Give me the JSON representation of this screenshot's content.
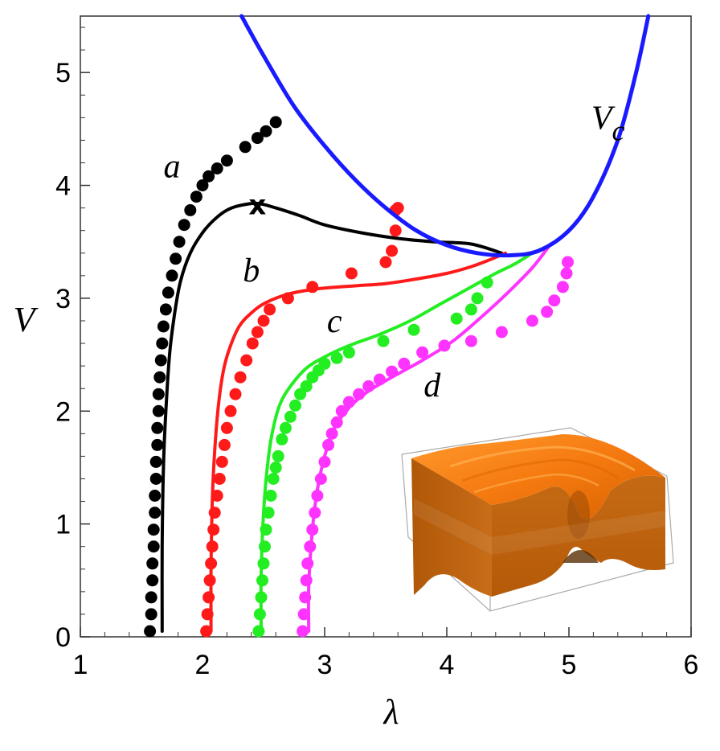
{
  "chart_data": {
    "type": "scatter",
    "xlabel": "λ",
    "ylabel": "V",
    "xlim": [
      1,
      6
    ],
    "ylim": [
      0,
      5.5
    ],
    "xticks": [
      1,
      2,
      3,
      4,
      5,
      6
    ],
    "yticks": [
      0,
      1,
      2,
      3,
      4,
      5
    ],
    "grid": false,
    "critical_curve": {
      "label": "V",
      "label_sub": "c",
      "color": "#1a1aff",
      "x": [
        2.32,
        2.5,
        2.75,
        3.0,
        3.25,
        3.5,
        3.75,
        4.0,
        4.25,
        4.5,
        4.75,
        5.0,
        5.2,
        5.4,
        5.55,
        5.65
      ],
      "y": [
        5.5,
        5.15,
        4.7,
        4.35,
        4.05,
        3.8,
        3.6,
        3.47,
        3.4,
        3.38,
        3.42,
        3.6,
        3.9,
        4.4,
        5.0,
        5.5
      ]
    },
    "marker": {
      "symbol": "x",
      "x": 2.45,
      "y": 3.83
    },
    "curve_labels": [
      {
        "text": "a",
        "x": 1.75,
        "y": 4.07
      },
      {
        "text": "b",
        "x": 2.4,
        "y": 3.15
      },
      {
        "text": "c",
        "x": 3.08,
        "y": 2.7
      },
      {
        "text": "d",
        "x": 3.88,
        "y": 2.13
      },
      {
        "text": "V",
        "sub": "c",
        "x": 5.32,
        "y": 4.5
      }
    ],
    "series": [
      {
        "name": "a",
        "color": "#000000",
        "line": {
          "x": [
            1.67,
            1.67,
            1.68,
            1.7,
            1.73,
            1.77,
            1.82,
            1.9,
            2.0,
            2.1,
            2.2,
            2.3,
            2.45,
            2.6,
            2.8,
            3.0,
            3.3,
            3.6,
            3.9,
            4.2,
            4.45
          ],
          "y": [
            0.05,
            0.8,
            1.5,
            2.0,
            2.5,
            2.85,
            3.15,
            3.4,
            3.58,
            3.7,
            3.78,
            3.82,
            3.84,
            3.8,
            3.73,
            3.65,
            3.58,
            3.53,
            3.5,
            3.48,
            3.4
          ]
        },
        "points": {
          "x": [
            1.57,
            1.58,
            1.58,
            1.59,
            1.59,
            1.6,
            1.6,
            1.61,
            1.61,
            1.62,
            1.62,
            1.63,
            1.63,
            1.64,
            1.64,
            1.65,
            1.66,
            1.67,
            1.68,
            1.7,
            1.72,
            1.75,
            1.78,
            1.81,
            1.85,
            1.9,
            1.95,
            2.0,
            2.05,
            2.12,
            2.2,
            2.35,
            2.45,
            2.52,
            2.6
          ],
          "y": [
            0.05,
            0.2,
            0.35,
            0.5,
            0.65,
            0.8,
            0.95,
            1.1,
            1.25,
            1.4,
            1.55,
            1.7,
            1.85,
            2.0,
            2.15,
            2.3,
            2.45,
            2.6,
            2.75,
            2.9,
            3.05,
            3.2,
            3.35,
            3.5,
            3.65,
            3.78,
            3.9,
            4.0,
            4.08,
            4.15,
            4.22,
            4.34,
            4.42,
            4.48,
            4.56
          ]
        }
      },
      {
        "name": "b",
        "color": "#ff1a1a",
        "line": {
          "x": [
            2.07,
            2.07,
            2.08,
            2.1,
            2.13,
            2.17,
            2.22,
            2.3,
            2.4,
            2.5,
            2.65,
            2.8,
            3.0,
            3.25,
            3.5,
            3.75,
            4.0,
            4.2,
            4.35,
            4.48
          ],
          "y": [
            0.05,
            0.6,
            1.2,
            1.65,
            2.05,
            2.35,
            2.55,
            2.75,
            2.87,
            2.95,
            3.02,
            3.06,
            3.09,
            3.11,
            3.13,
            3.17,
            3.22,
            3.28,
            3.34,
            3.4
          ]
        },
        "points": {
          "x": [
            2.03,
            2.04,
            2.05,
            2.06,
            2.07,
            2.08,
            2.09,
            2.1,
            2.12,
            2.14,
            2.16,
            2.18,
            2.2,
            2.23,
            2.27,
            2.31,
            2.36,
            2.41,
            2.45,
            2.5,
            2.55,
            2.7,
            2.9,
            3.22,
            3.5,
            3.55,
            3.58,
            3.58,
            3.6
          ],
          "y": [
            0.05,
            0.2,
            0.35,
            0.5,
            0.65,
            0.8,
            0.95,
            1.1,
            1.25,
            1.4,
            1.55,
            1.7,
            1.85,
            2.0,
            2.15,
            2.3,
            2.45,
            2.6,
            2.7,
            2.8,
            2.9,
            3.0,
            3.1,
            3.22,
            3.32,
            3.42,
            3.6,
            3.78,
            3.8
          ]
        }
      },
      {
        "name": "c",
        "color": "#22ee22",
        "line": {
          "x": [
            2.48,
            2.48,
            2.5,
            2.53,
            2.57,
            2.63,
            2.72,
            2.85,
            3.0,
            3.2,
            3.45,
            3.7,
            3.95,
            4.2,
            4.4,
            4.55,
            4.7
          ],
          "y": [
            0.05,
            0.55,
            1.1,
            1.5,
            1.8,
            2.05,
            2.22,
            2.38,
            2.48,
            2.58,
            2.68,
            2.8,
            2.95,
            3.1,
            3.22,
            3.3,
            3.4
          ]
        },
        "points": {
          "x": [
            2.46,
            2.47,
            2.48,
            2.49,
            2.5,
            2.51,
            2.52,
            2.54,
            2.56,
            2.58,
            2.6,
            2.62,
            2.65,
            2.68,
            2.72,
            2.76,
            2.8,
            2.85,
            2.9,
            2.95,
            3.0,
            3.1,
            3.2,
            3.48,
            3.73,
            4.08,
            4.2,
            4.25,
            4.33
          ],
          "y": [
            0.05,
            0.2,
            0.35,
            0.5,
            0.65,
            0.8,
            0.95,
            1.1,
            1.25,
            1.4,
            1.5,
            1.6,
            1.75,
            1.85,
            1.95,
            2.05,
            2.15,
            2.22,
            2.3,
            2.36,
            2.42,
            2.47,
            2.52,
            2.62,
            2.72,
            2.82,
            2.9,
            3.0,
            3.14
          ]
        }
      },
      {
        "name": "d",
        "color": "#ff33ff",
        "line": {
          "x": [
            2.87,
            2.87,
            2.9,
            2.94,
            3.0,
            3.08,
            3.2,
            3.35,
            3.55,
            3.8,
            4.05,
            4.3,
            4.5,
            4.7,
            4.85
          ],
          "y": [
            0.05,
            0.45,
            0.95,
            1.3,
            1.6,
            1.85,
            2.03,
            2.17,
            2.3,
            2.45,
            2.62,
            2.85,
            3.05,
            3.27,
            3.48
          ]
        },
        "points": {
          "x": [
            2.82,
            2.83,
            2.84,
            2.85,
            2.86,
            2.88,
            2.9,
            2.92,
            2.94,
            2.97,
            3.0,
            3.03,
            3.06,
            3.1,
            3.14,
            3.2,
            3.28,
            3.36,
            3.45,
            3.55,
            3.65,
            3.8,
            3.98,
            4.2,
            4.45,
            4.7,
            4.82,
            4.88,
            4.95,
            4.98,
            4.99
          ],
          "y": [
            0.05,
            0.2,
            0.35,
            0.5,
            0.65,
            0.8,
            0.95,
            1.1,
            1.25,
            1.4,
            1.55,
            1.7,
            1.8,
            1.9,
            2.0,
            2.08,
            2.15,
            2.22,
            2.28,
            2.35,
            2.42,
            2.52,
            2.58,
            2.62,
            2.7,
            2.8,
            2.88,
            2.98,
            3.1,
            3.22,
            3.32
          ]
        }
      }
    ]
  }
}
